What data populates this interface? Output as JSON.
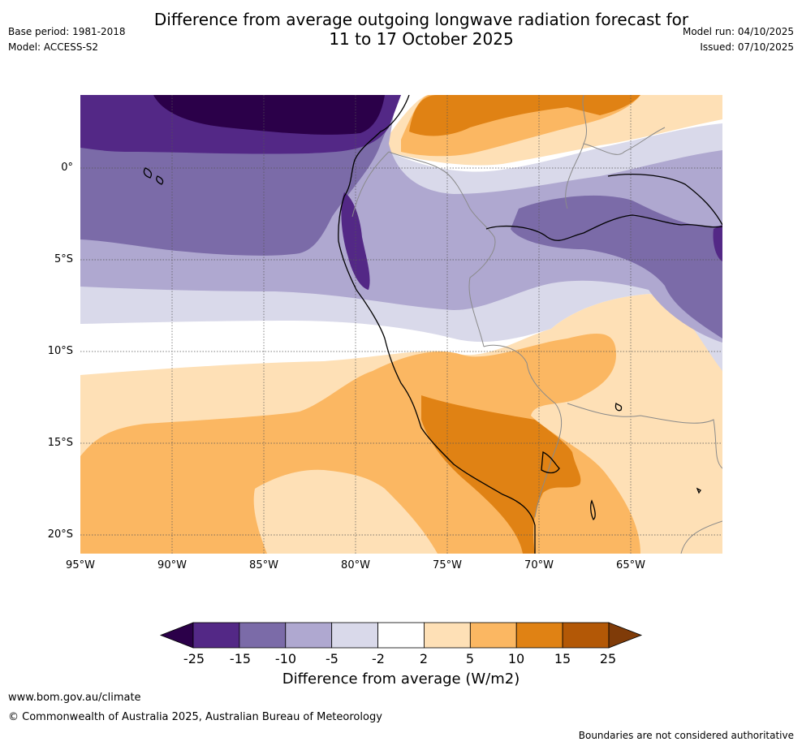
{
  "title": {
    "line1": "Difference from average outgoing longwave radiation forecast for",
    "line2": "11 to 17 October 2025"
  },
  "meta": {
    "base_period": "Base period: 1981-2018",
    "model": "Model: ACCESS-S2",
    "model_run": "Model run: 04/10/2025",
    "issued": "Issued: 07/10/2025"
  },
  "axes": {
    "lat_ticks": [
      "0°",
      "5°S",
      "10°S",
      "15°S",
      "20°S"
    ],
    "lon_ticks": [
      "95°W",
      "90°W",
      "85°W",
      "80°W",
      "75°W",
      "70°W",
      "65°W"
    ]
  },
  "colorbar": {
    "labels": [
      "-25",
      "-15",
      "-10",
      "-5",
      "-2",
      "2",
      "5",
      "10",
      "15",
      "25"
    ],
    "colors": [
      "#2b0049",
      "#532886",
      "#7b6ba8",
      "#afa8d0",
      "#d9d9ea",
      "#ffffff",
      "#fee0b6",
      "#fbb762",
      "#e08214",
      "#b35806",
      "#7f3b08"
    ],
    "title": "Difference from average (W/m2)"
  },
  "footer": {
    "url": "www.bom.gov.au/climate",
    "copyright": "© Commonwealth of Australia 2025, Australian Bureau of Meteorology",
    "disclaimer": "Boundaries are not considered authoritative"
  }
}
